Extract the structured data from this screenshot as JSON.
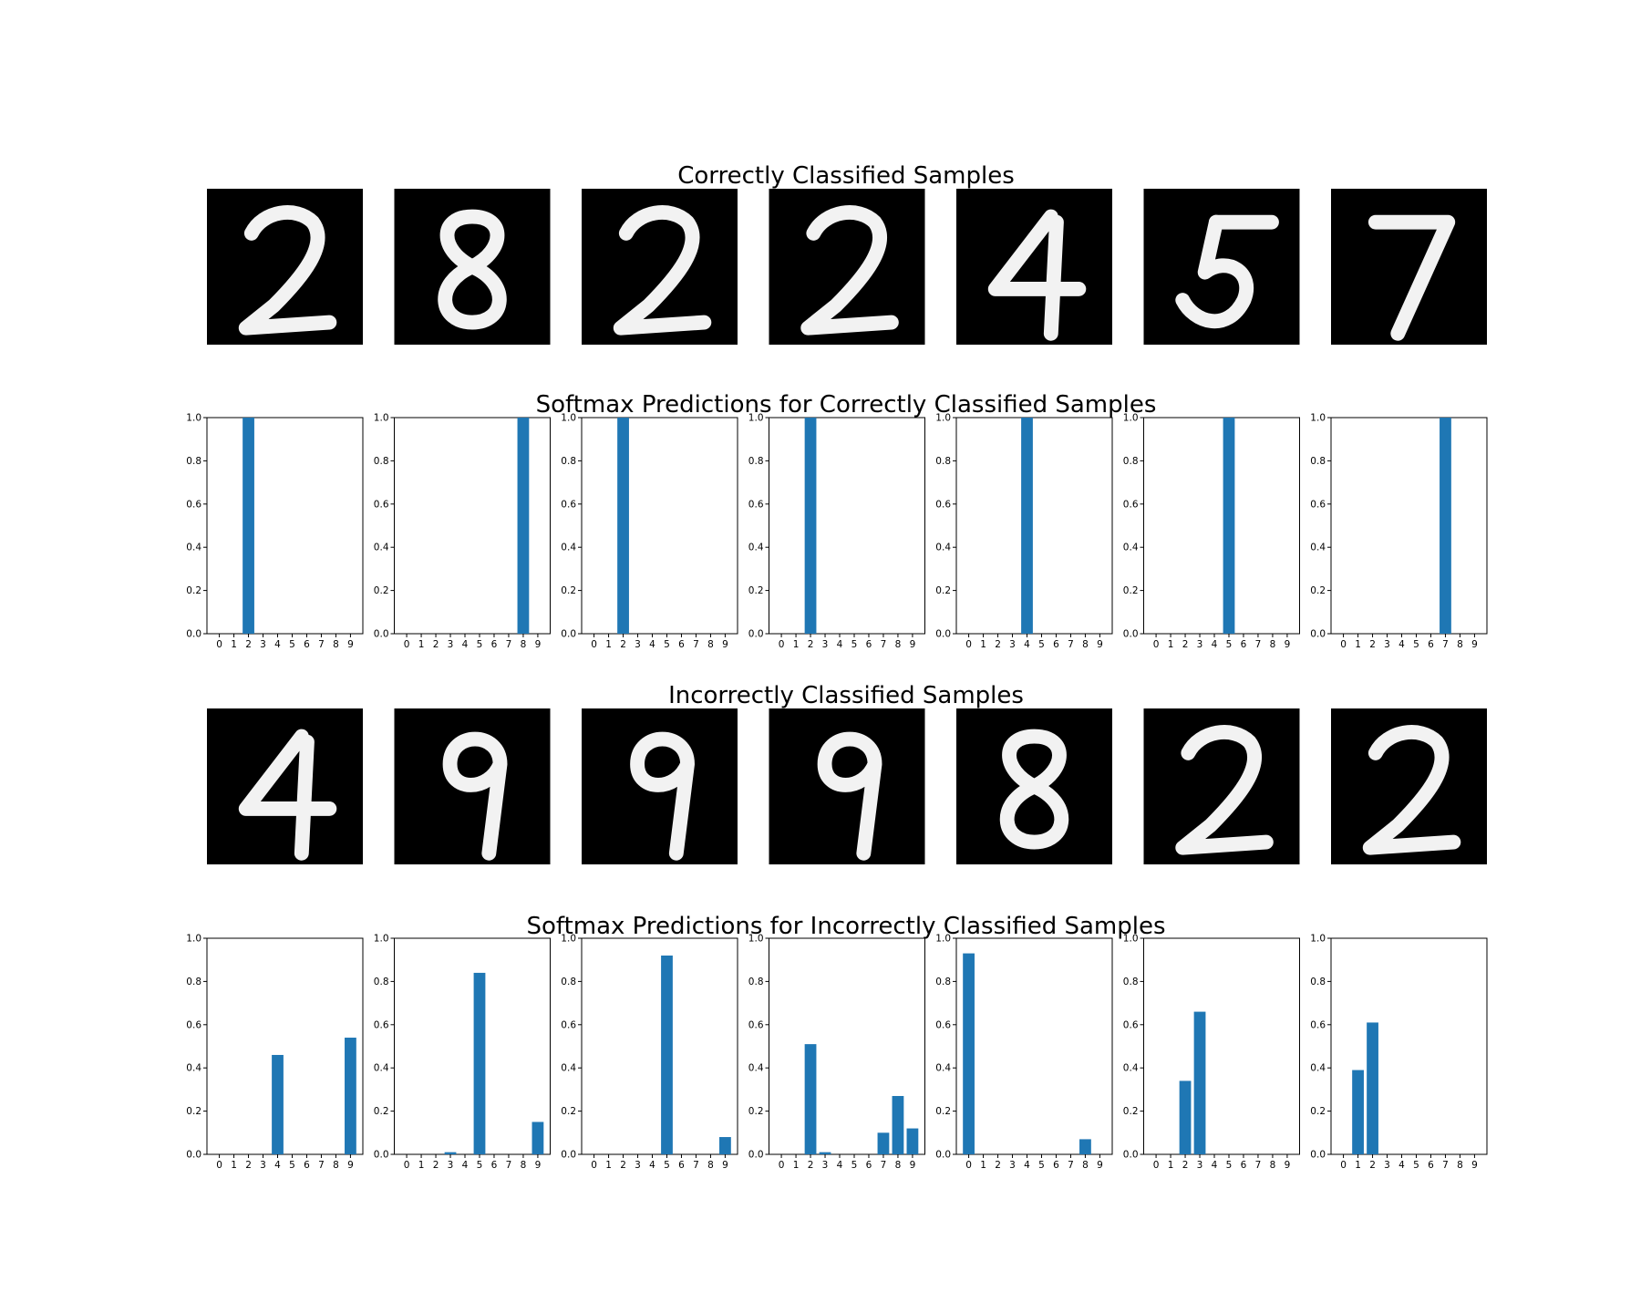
{
  "titles": {
    "correct_images": "Correctly Classified Samples",
    "correct_softmax": "Softmax Predictions for Correctly Classified Samples",
    "incorrect_images": "Incorrectly Classified Samples",
    "incorrect_softmax": "Softmax Predictions for Incorrectly Classified Samples"
  },
  "digit_images": {
    "correct": [
      "digit-2",
      "digit-8",
      "digit-2",
      "digit-2",
      "digit-4",
      "digit-5",
      "digit-7"
    ],
    "incorrect": [
      "digit-4",
      "digit-9",
      "digit-9",
      "digit-9",
      "digit-8",
      "digit-2",
      "digit-2"
    ]
  },
  "chart_data": [
    {
      "type": "bar",
      "group": "correct",
      "title": "",
      "categories": [
        "0",
        "1",
        "2",
        "3",
        "4",
        "5",
        "6",
        "7",
        "8",
        "9"
      ],
      "ylim": [
        0,
        1
      ],
      "yticks": [
        "0.0",
        "0.2",
        "0.4",
        "0.6",
        "0.8",
        "1.0"
      ],
      "charts": [
        [
          0,
          0,
          1,
          0,
          0,
          0,
          0,
          0,
          0,
          0
        ],
        [
          0,
          0,
          0,
          0,
          0,
          0,
          0,
          0,
          1,
          0
        ],
        [
          0,
          0,
          1,
          0,
          0,
          0,
          0,
          0,
          0,
          0
        ],
        [
          0,
          0,
          1,
          0,
          0,
          0,
          0,
          0,
          0,
          0
        ],
        [
          0,
          0,
          0,
          0,
          1,
          0,
          0,
          0,
          0,
          0
        ],
        [
          0,
          0,
          0,
          0,
          0,
          1,
          0,
          0,
          0,
          0
        ],
        [
          0,
          0,
          0,
          0,
          0,
          0,
          0,
          1,
          0,
          0
        ]
      ],
      "color": "#1f77b4"
    },
    {
      "type": "bar",
      "group": "incorrect",
      "title": "",
      "categories": [
        "0",
        "1",
        "2",
        "3",
        "4",
        "5",
        "6",
        "7",
        "8",
        "9"
      ],
      "ylim": [
        0,
        1
      ],
      "yticks": [
        "0.0",
        "0.2",
        "0.4",
        "0.6",
        "0.8",
        "1.0"
      ],
      "charts": [
        [
          0,
          0,
          0,
          0,
          0.46,
          0,
          0,
          0,
          0,
          0.54
        ],
        [
          0,
          0,
          0,
          0.01,
          0,
          0.84,
          0,
          0,
          0,
          0.15
        ],
        [
          0,
          0,
          0,
          0,
          0,
          0.92,
          0,
          0,
          0,
          0.08
        ],
        [
          0,
          0,
          0.51,
          0.01,
          0,
          0,
          0,
          0.1,
          0.27,
          0.12
        ],
        [
          0.93,
          0,
          0,
          0,
          0,
          0,
          0,
          0,
          0.07,
          0
        ],
        [
          0,
          0,
          0.34,
          0.66,
          0,
          0,
          0,
          0,
          0,
          0
        ],
        [
          0,
          0.39,
          0.61,
          0,
          0,
          0,
          0,
          0,
          0,
          0
        ]
      ],
      "color": "#1f77b4"
    }
  ]
}
